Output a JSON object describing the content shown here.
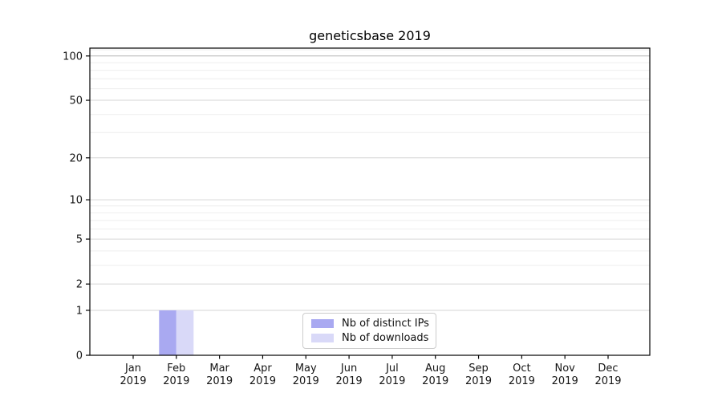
{
  "chart_data": {
    "type": "bar",
    "title": "geneticsbase 2019",
    "categories": [
      "Jan",
      "Feb",
      "Mar",
      "Apr",
      "May",
      "Jun",
      "Jul",
      "Aug",
      "Sep",
      "Oct",
      "Nov",
      "Dec"
    ],
    "category_year": "2019",
    "series": [
      {
        "name": "Nb of distinct IPs",
        "color": "#a9a9f1",
        "values": [
          0,
          1,
          0,
          0,
          0,
          0,
          0,
          0,
          0,
          0,
          0,
          0
        ]
      },
      {
        "name": "Nb of downloads",
        "color": "#d9d9f8",
        "values": [
          0,
          1,
          0,
          0,
          0,
          0,
          0,
          0,
          0,
          0,
          0,
          0
        ]
      }
    ],
    "y_axis": {
      "scale": "log1p",
      "major_ticks": [
        0,
        1,
        2,
        5,
        10,
        20,
        50,
        100
      ],
      "minor_ticks": [
        3,
        4,
        6,
        7,
        8,
        9,
        30,
        40,
        60,
        70,
        80,
        90,
        110
      ],
      "ylim": [
        0,
        113
      ]
    },
    "legend": {
      "position": "inside-bottom-center"
    },
    "grid": {
      "major_color": "#d6d6d6",
      "minor_color": "#eeeeee",
      "emphasis_value": 100,
      "emphasis_color": "#b5b5b5"
    },
    "colors": {
      "spine": "#000000",
      "tick_label": "#151515"
    }
  }
}
